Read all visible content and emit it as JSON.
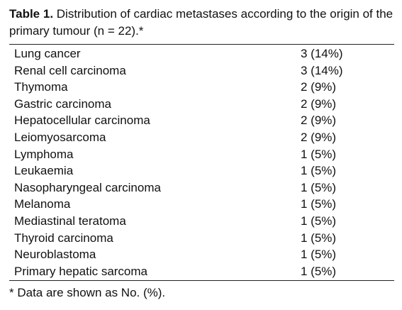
{
  "table": {
    "title_label": "Table 1.",
    "title_text": "Distribution of cardiac metastases according to the origin of the primary tumour (n = 22).*",
    "rows": [
      [
        "Lung cancer",
        "3 (14%)"
      ],
      [
        "Renal cell carcinoma",
        "3 (14%)"
      ],
      [
        "Thymoma",
        "2 (9%)"
      ],
      [
        "Gastric carcinoma",
        "2 (9%)"
      ],
      [
        "Hepatocellular carcinoma",
        "2 (9%)"
      ],
      [
        "Leiomyosarcoma",
        "2 (9%)"
      ],
      [
        "Lymphoma",
        "1 (5%)"
      ],
      [
        "Leukaemia",
        "1 (5%)"
      ],
      [
        "Nasopharyngeal carcinoma",
        "1 (5%)"
      ],
      [
        "Melanoma",
        "1 (5%)"
      ],
      [
        "Mediastinal teratoma",
        "1 (5%)"
      ],
      [
        "Thyroid carcinoma",
        "1 (5%)"
      ],
      [
        "Neuroblastoma",
        "1 (5%)"
      ],
      [
        "Primary hepatic sarcoma",
        "1 (5%)"
      ]
    ],
    "footnote": "* Data are shown as No. (%)."
  }
}
